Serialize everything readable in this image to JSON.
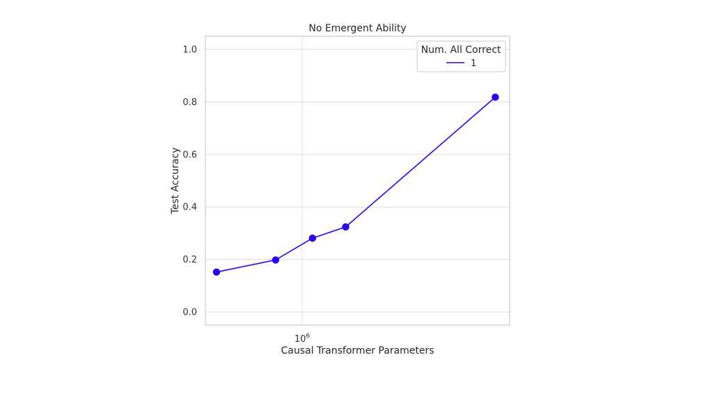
{
  "chart_data": {
    "type": "line",
    "title": "No Emergent Ability",
    "xlabel": "Causal Transformer Parameters",
    "ylabel": "Test Accuracy",
    "xscale": "log",
    "xlim": [
      530000,
      3900000
    ],
    "ylim": [
      -0.05,
      1.05
    ],
    "x_ticks": [
      {
        "value": 1000000,
        "base": "10",
        "exp": "6"
      }
    ],
    "y_ticks": [
      {
        "value": 0.0,
        "label": "0.0"
      },
      {
        "value": 0.2,
        "label": "0.2"
      },
      {
        "value": 0.4,
        "label": "0.4"
      },
      {
        "value": 0.6,
        "label": "0.6"
      },
      {
        "value": 0.8,
        "label": "0.8"
      },
      {
        "value": 1.0,
        "label": "1.0"
      }
    ],
    "grid": true,
    "legend": {
      "title": "Num. All Correct",
      "position": "top-right"
    },
    "series": [
      {
        "name": "1",
        "color": "#2b00f4",
        "x": [
          570000,
          840000,
          1070000,
          1330000,
          3550000
        ],
        "y": [
          0.152,
          0.198,
          0.281,
          0.324,
          0.818
        ]
      }
    ]
  }
}
